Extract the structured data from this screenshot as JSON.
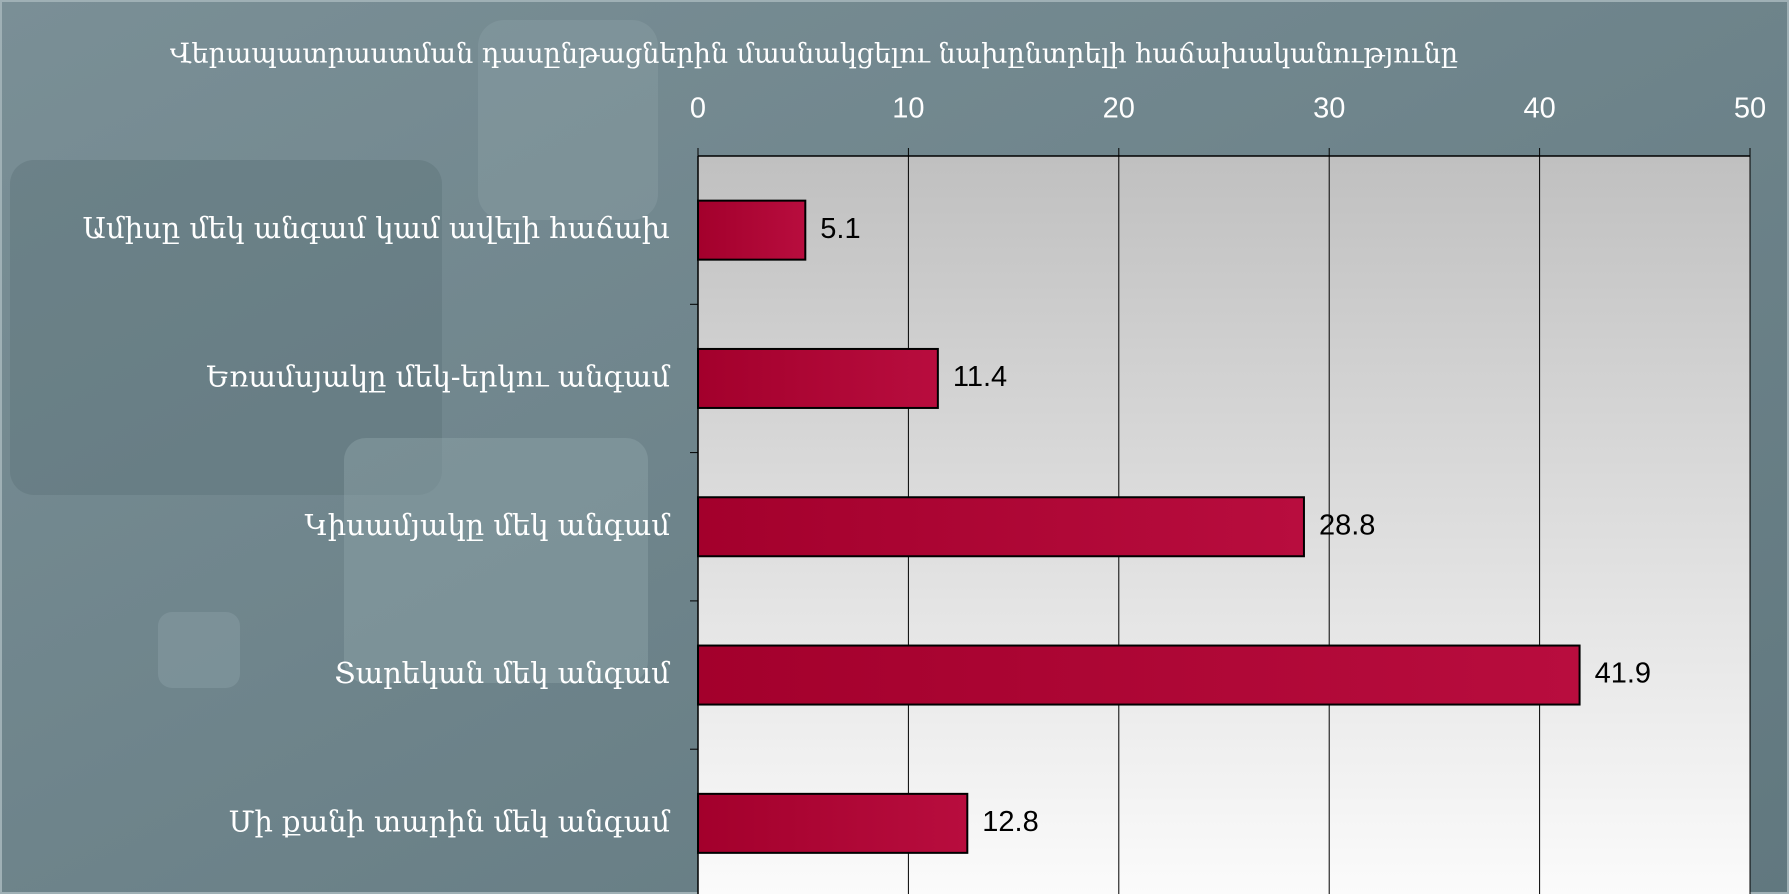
{
  "chart_data": {
    "type": "bar",
    "title": "Վերապատրաստման դասընթացներին մասնակցելու նախընտրելի հաճախականությունը",
    "categories": [
      "Ամիսը մեկ անգամ կամ ավելի հաճախ",
      "Եռամսյակը մեկ-երկու անգամ",
      "Կիսամյակը մեկ անգամ",
      "Տարեկան մեկ անգամ",
      "Մի քանի տարին մեկ անգամ"
    ],
    "values": [
      5.1,
      11.4,
      28.8,
      41.9,
      12.8
    ],
    "color": "#a8002e",
    "xlim": [
      0,
      50
    ],
    "xticks": [
      0,
      10,
      20,
      30,
      40,
      50
    ],
    "grid": true
  }
}
